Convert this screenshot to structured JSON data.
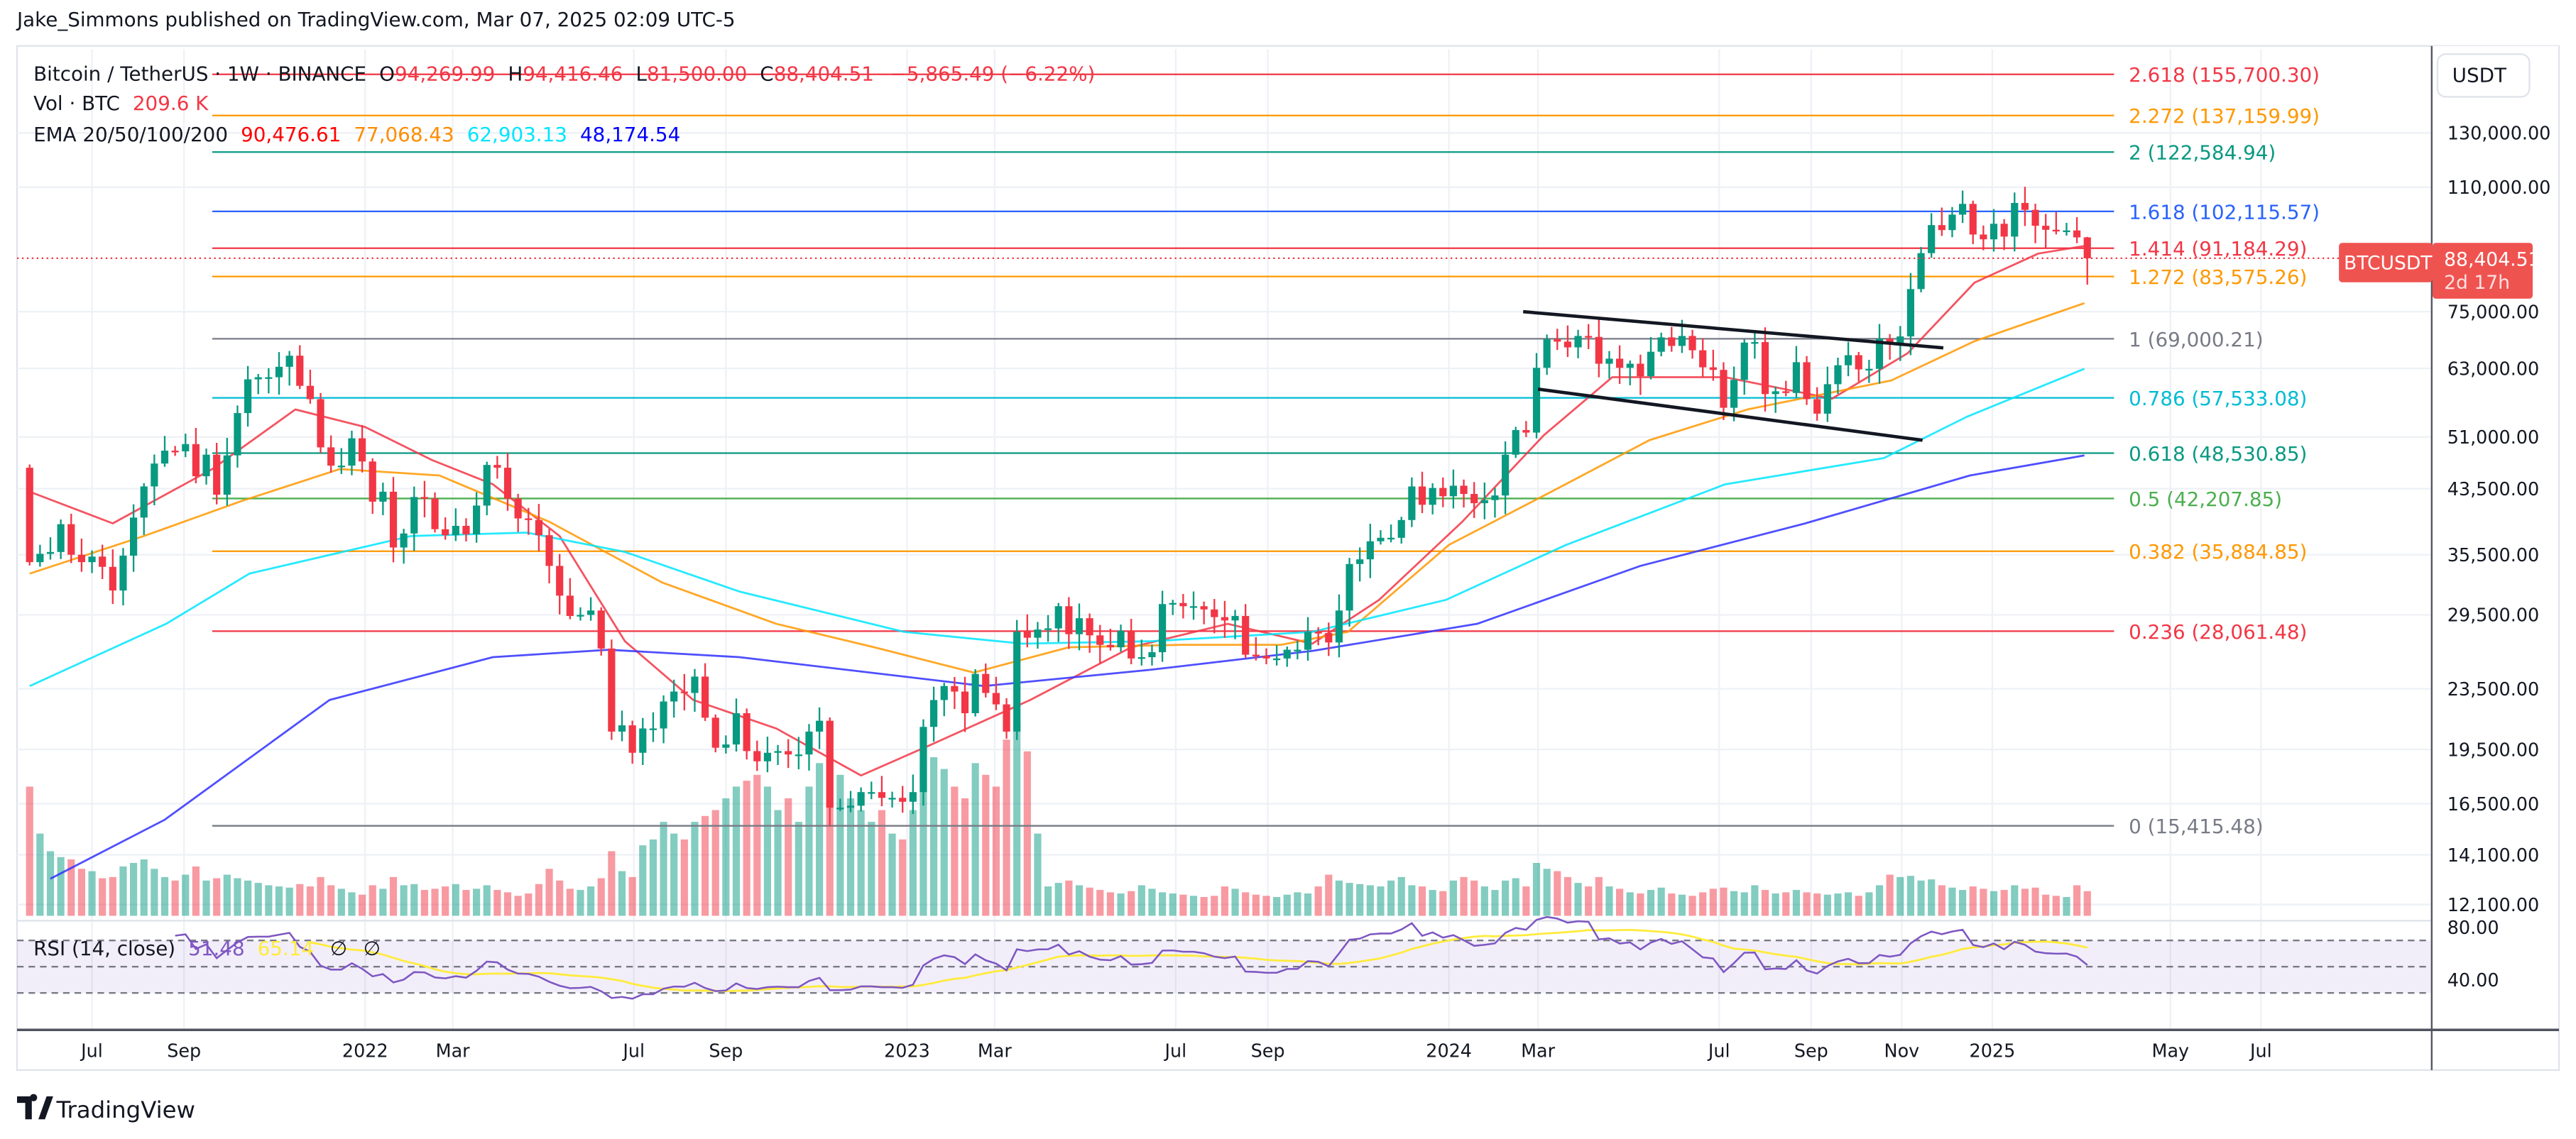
{
  "header": {
    "publisher": "Jake_Simmons published on TradingView.com, Mar 07, 2025 02:09 UTC-5"
  },
  "legend": {
    "symbol": "Bitcoin / TetherUS · 1W · BINANCE",
    "o_label": "O",
    "open": "94,269.99",
    "h_label": "H",
    "high": "94,416.46",
    "l_label": "L",
    "low": "81,500.00",
    "c_label": "C",
    "close": "88,404.51",
    "change": "−5,865.49 (−6.22%)",
    "vol_label": "Vol · BTC",
    "vol_value": "209.6 K",
    "ema_label": "EMA 20/50/100/200",
    "ema20": "90,476.61",
    "ema50": "77,068.43",
    "ema100": "62,903.13",
    "ema200": "48,174.54",
    "rsi_label": "RSI (14, close)",
    "rsi_value": "51.48",
    "rsi_ma_value": "65.14",
    "rsi_extra1": "∅",
    "rsi_extra2": "∅"
  },
  "price_axis": {
    "currency": "USDT",
    "ticks": [
      "130,000.00",
      "110,000.00",
      "75,000.00",
      "63,000.00",
      "51,000.00",
      "43,500.00",
      "35,500.00",
      "29,500.00",
      "23,500.00",
      "19,500.00",
      "16,500.00",
      "14,100.00",
      "12,100.00"
    ],
    "rsi_ticks": [
      "80.00",
      "40.00"
    ],
    "last_symbol": "BTCUSDT",
    "last_price": "88,404.51",
    "countdown": "2d 17h"
  },
  "time_axis": {
    "labels": [
      "Jul",
      "Sep",
      "2022",
      "Mar",
      "Jul",
      "Sep",
      "2023",
      "Mar",
      "Jul",
      "Sep",
      "2024",
      "Mar",
      "Jul",
      "Sep",
      "Nov",
      "2025",
      "May",
      "Jul"
    ]
  },
  "footer": {
    "brand": "TradingView"
  },
  "colors": {
    "up": "#089981",
    "down": "#f23645",
    "ema20": "#f23645",
    "ema50": "#ff9800",
    "ema100": "#00e5ff",
    "ema200": "#3030ff",
    "rsi": "#7e57c2",
    "rsi_ma": "#ffeb3b"
  },
  "chart_data": {
    "type": "candlestick",
    "symbol": "BTCUSDT",
    "interval": "1W",
    "scale": "log",
    "start_date": "2021-05-17",
    "ylim": [
      11000,
      175000
    ],
    "time_ticks": [
      "2021-07-01",
      "2021-09-01",
      "2022-01-01",
      "2022-03-01",
      "2022-07-01",
      "2022-09-01",
      "2023-01-01",
      "2023-03-01",
      "2023-07-01",
      "2023-09-01",
      "2024-01-01",
      "2024-03-01",
      "2024-07-01",
      "2024-09-01",
      "2024-11-01",
      "2025-01-01",
      "2025-05-01",
      "2025-07-01"
    ],
    "price_ticks": [
      130000,
      110000,
      75000,
      63000,
      51000,
      43500,
      35500,
      29500,
      23500,
      19500,
      16500,
      14100,
      12100
    ],
    "closes": [
      34700,
      35600,
      35800,
      39000,
      35500,
      34700,
      35300,
      34200,
      31800,
      35400,
      39800,
      43800,
      47000,
      48900,
      48800,
      49900,
      45200,
      48300,
      42700,
      48200,
      54900,
      60900,
      61300,
      61300,
      63300,
      65500,
      59700,
      57300,
      49400,
      46700,
      46700,
      50800,
      47300,
      41800,
      43100,
      36300,
      37900,
      42400,
      42200,
      38400,
      37700,
      38800,
      37800,
      41300,
      46800,
      46400,
      42200,
      39700,
      39500,
      37700,
      34300,
      31300,
      29400,
      29500,
      29900,
      26600,
      20600,
      21000,
      19300,
      20800,
      20800,
      22600,
      23300,
      23200,
      24400,
      21500,
      19600,
      19800,
      21800,
      19400,
      18800,
      19300,
      19400,
      19200,
      19200,
      20600,
      21300,
      16300,
      16300,
      16400,
      17100,
      17100,
      16800,
      16800,
      16600,
      17100,
      20900,
      22700,
      23700,
      23300,
      21800,
      24600,
      23200,
      22400,
      20600,
      28000,
      27500,
      28200,
      28300,
      30300,
      27800,
      29200,
      27700,
      26900,
      26700,
      28100,
      25800,
      25900,
      26300,
      30500,
      30600,
      30300,
      30300,
      30000,
      29300,
      29000,
      29400,
      26100,
      26000,
      25800,
      25800,
      26500,
      26500,
      28000,
      27900,
      27100,
      29900,
      34500,
      35000,
      37000,
      37400,
      37400,
      39500,
      43800,
      41400,
      43600,
      42500,
      43900,
      42800,
      41600,
      42000,
      42600,
      48300,
      52100,
      51700,
      63100,
      68900,
      68400,
      67200,
      69600,
      69400,
      63900,
      64900,
      63100,
      63900,
      61500,
      66300,
      69300,
      67500,
      69600,
      66600,
      63200,
      62700,
      55800,
      60800,
      68200,
      68300,
      58200,
      58700,
      58400,
      64200,
      57300,
      54800,
      60000,
      63600,
      65600,
      62800,
      62900,
      69000,
      68000,
      69500,
      80400,
      89800,
      97900,
      96400,
      101100,
      104500,
      95100,
      93700,
      98300,
      94500,
      104800,
      102600,
      97700,
      96500,
      96100,
      96300,
      94269.99,
      88404.51
    ],
    "first_open": 46400,
    "last_candle": {
      "open": 94269.99,
      "high": 94416.46,
      "low": 81500.0,
      "close": 88404.51
    },
    "volume_k": [
      1100,
      700,
      550,
      500,
      480,
      400,
      380,
      320,
      330,
      420,
      450,
      480,
      400,
      330,
      300,
      350,
      420,
      300,
      320,
      350,
      320,
      300,
      280,
      260,
      250,
      240,
      270,
      250,
      330,
      260,
      230,
      200,
      180,
      260,
      230,
      330,
      260,
      270,
      220,
      230,
      250,
      270,
      220,
      230,
      260,
      220,
      200,
      170,
      190,
      270,
      400,
      300,
      230,
      220,
      250,
      320,
      550,
      380,
      330,
      600,
      650,
      800,
      700,
      650,
      800,
      850,
      900,
      1000,
      1100,
      1150,
      1200,
      1100,
      900,
      1000,
      800,
      1100,
      1300,
      1650,
      1200,
      1000,
      900,
      800,
      900,
      700,
      650,
      900,
      1300,
      1350,
      1250,
      1100,
      1000,
      1300,
      1200,
      1100,
      1500,
      1650,
      1400,
      700,
      250,
      280,
      300,
      260,
      240,
      220,
      200,
      190,
      210,
      260,
      230,
      200,
      190,
      180,
      170,
      160,
      170,
      250,
      230,
      200,
      180,
      170,
      160,
      180,
      200,
      190,
      250,
      350,
      300,
      280,
      270,
      260,
      250,
      300,
      330,
      260,
      250,
      220,
      210,
      300,
      330,
      300,
      250,
      220,
      300,
      320,
      250,
      450,
      400,
      380,
      330,
      280,
      250,
      330,
      250,
      230,
      200,
      190,
      220,
      240,
      190,
      180,
      170,
      200,
      230,
      240,
      210,
      200,
      260,
      220,
      190,
      200,
      220,
      200,
      190,
      180,
      190,
      200,
      170,
      200,
      260,
      350,
      330,
      340,
      300,
      310,
      260,
      240,
      220,
      250,
      230,
      210,
      220,
      260,
      230,
      240,
      180,
      170,
      160,
      260,
      209.6
    ],
    "ema": [
      {
        "name": "EMA 20",
        "color": "#f23645",
        "points": [
          [
            "2021-05-20",
            43100
          ],
          [
            "2021-07-15",
            39100
          ],
          [
            "2021-09-20",
            46200
          ],
          [
            "2021-11-15",
            55500
          ],
          [
            "2022-01-01",
            52600
          ],
          [
            "2022-02-15",
            47500
          ],
          [
            "2022-03-28",
            44100
          ],
          [
            "2022-05-12",
            37600
          ],
          [
            "2022-06-25",
            27200
          ],
          [
            "2022-08-10",
            22700
          ],
          [
            "2022-10-05",
            20800
          ],
          [
            "2022-12-01",
            18000
          ],
          [
            "2023-01-15",
            19700
          ],
          [
            "2023-03-25",
            22700
          ],
          [
            "2023-06-01",
            26700
          ],
          [
            "2023-08-05",
            28700
          ],
          [
            "2023-10-01",
            27000
          ],
          [
            "2023-11-15",
            30900
          ],
          [
            "2024-01-10",
            39300
          ],
          [
            "2024-03-05",
            51300
          ],
          [
            "2024-04-20",
            61300
          ],
          [
            "2024-07-05",
            61300
          ],
          [
            "2024-09-15",
            57400
          ],
          [
            "2024-11-05",
            66000
          ],
          [
            "2024-12-20",
            82000
          ],
          [
            "2025-02-01",
            89700
          ],
          [
            "2025-03-04",
            91800
          ]
        ]
      },
      {
        "name": "EMA 50",
        "color": "#ff9800",
        "points": [
          [
            "2021-05-20",
            33500
          ],
          [
            "2021-08-05",
            37600
          ],
          [
            "2021-10-10",
            41900
          ],
          [
            "2021-12-15",
            46200
          ],
          [
            "2022-02-20",
            45300
          ],
          [
            "2022-05-05",
            39300
          ],
          [
            "2022-07-20",
            32600
          ],
          [
            "2022-10-05",
            28700
          ],
          [
            "2022-12-10",
            26700
          ],
          [
            "2023-02-15",
            24700
          ],
          [
            "2023-04-20",
            26700
          ],
          [
            "2023-07-05",
            26900
          ],
          [
            "2023-09-10",
            26900
          ],
          [
            "2023-10-25",
            28000
          ],
          [
            "2024-01-01",
            36600
          ],
          [
            "2024-03-10",
            43100
          ],
          [
            "2024-05-15",
            50500
          ],
          [
            "2024-07-20",
            55500
          ],
          [
            "2024-10-25",
            60700
          ],
          [
            "2024-12-20",
            68500
          ],
          [
            "2025-03-04",
            77000
          ]
        ]
      },
      {
        "name": "EMA 100",
        "color": "#00e5ff",
        "points": [
          [
            "2021-05-20",
            23700
          ],
          [
            "2021-08-20",
            28700
          ],
          [
            "2021-10-15",
            33500
          ],
          [
            "2022-02-01",
            37600
          ],
          [
            "2022-04-20",
            38000
          ],
          [
            "2022-06-25",
            35800
          ],
          [
            "2022-09-10",
            31700
          ],
          [
            "2022-12-30",
            28000
          ],
          [
            "2023-03-20",
            27000
          ],
          [
            "2023-06-15",
            27200
          ],
          [
            "2023-10-01",
            28000
          ],
          [
            "2023-12-30",
            30900
          ],
          [
            "2024-03-20",
            36600
          ],
          [
            "2024-07-05",
            44100
          ],
          [
            "2024-10-20",
            47800
          ],
          [
            "2024-12-15",
            54300
          ],
          [
            "2025-03-04",
            62900
          ]
        ]
      },
      {
        "name": "EMA 200",
        "color": "#3030ff",
        "points": [
          [
            "2021-06-03",
            13100
          ],
          [
            "2021-08-19",
            15700
          ],
          [
            "2021-12-08",
            22700
          ],
          [
            "2022-03-28",
            25900
          ],
          [
            "2022-06-14",
            26500
          ],
          [
            "2022-09-10",
            25900
          ],
          [
            "2023-02-22",
            23700
          ],
          [
            "2023-06-13",
            24900
          ],
          [
            "2023-10-01",
            26400
          ],
          [
            "2024-01-20",
            28700
          ],
          [
            "2024-05-09",
            34300
          ],
          [
            "2024-08-28",
            39100
          ],
          [
            "2024-12-17",
            45300
          ],
          [
            "2025-03-04",
            48200
          ]
        ]
      }
    ],
    "fib_levels": [
      {
        "ratio": "2.618",
        "price": 155700.3,
        "label": "2.618 (155,700.30)",
        "color": "#f23645"
      },
      {
        "ratio": "2.272",
        "price": 137159.99,
        "label": "2.272 (137,159.99)",
        "color": "#ff9800"
      },
      {
        "ratio": "2",
        "price": 122584.94,
        "label": "2 (122,584.94)",
        "color": "#089981"
      },
      {
        "ratio": "1.618",
        "price": 102115.57,
        "label": "1.618 (102,115.57)",
        "color": "#2962ff"
      },
      {
        "ratio": "1.414",
        "price": 91184.29,
        "label": "1.414 (91,184.29)",
        "color": "#f23645"
      },
      {
        "ratio": "1.272",
        "price": 83575.26,
        "label": "1.272 (83,575.26)",
        "color": "#ff9800"
      },
      {
        "ratio": "1",
        "price": 69000.21,
        "label": "1 (69,000.21)",
        "color": "#787b86"
      },
      {
        "ratio": "0.786",
        "price": 57533.08,
        "label": "0.786 (57,533.08)",
        "color": "#00bcd4"
      },
      {
        "ratio": "0.618",
        "price": 48530.85,
        "label": "0.618 (48,530.85)",
        "color": "#089981"
      },
      {
        "ratio": "0.5",
        "price": 42207.85,
        "label": "0.5 (42,207.85)",
        "color": "#4caf50"
      },
      {
        "ratio": "0.382",
        "price": 35884.85,
        "label": "0.382 (35,884.85)",
        "color": "#ff9800"
      },
      {
        "ratio": "0.236",
        "price": 28061.48,
        "label": "0.236 (28,061.48)",
        "color": "#f23645"
      },
      {
        "ratio": "0",
        "price": 15415.48,
        "label": "0 (15,415.48)",
        "color": "#787b86"
      }
    ],
    "fib_start": "2021-09-20",
    "fib_end": "2025-03-24",
    "trendlines": [
      {
        "from": [
          "2024-02-20",
          75000
        ],
        "to": [
          "2024-11-29",
          67100
        ]
      },
      {
        "from": [
          "2024-03-01",
          59100
        ],
        "to": [
          "2024-11-15",
          50500
        ]
      }
    ],
    "rsi": {
      "period": 14,
      "ma_period": 14,
      "levels": [
        70,
        50,
        30
      ],
      "ylim": [
        20,
        85
      ]
    }
  }
}
